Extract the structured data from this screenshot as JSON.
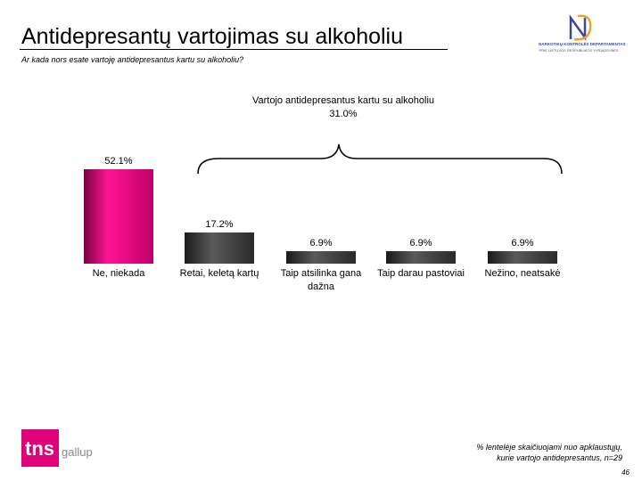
{
  "slide": {
    "title": "Antidepresantų vartojimas su alkoholiu",
    "subtitle": "Ar kada nors esate vartoję antidepresantus kartu su alkoholiu?",
    "group_label": "Vartojo antidepresantus kartu su alkoholiu",
    "group_value": "31.0%",
    "footnote_line1": "% lentelėje skaičiuojami nuo apklaustųjų,",
    "footnote_line2": "kurie vartojo antidepresantus, n=29",
    "page_number": "46",
    "logo_org_line1": "NARKOTIKŲ KONTROLĖS DEPARTAMENTAS",
    "logo_org_line2": "PRIE LIETUVOS RESPUBLIKOS VYRIAUSYBĖS",
    "tns_brand": "tns",
    "tns_sub": "gallup"
  },
  "chart_data": {
    "type": "bar",
    "title": "",
    "xlabel": "",
    "ylabel": "",
    "ylim": [
      0,
      52.1
    ],
    "grid": false,
    "categories": [
      "Ne, niekada",
      "Retai, keletą kartų",
      "Taip atsilinka gana dažna",
      "Taip darau pastoviai",
      "Nežino, neatsakė"
    ],
    "value_labels": [
      "52.1%",
      "17.2%",
      "6.9%",
      "6.9%",
      "6.9%"
    ],
    "values": [
      52.1,
      17.2,
      6.9,
      6.9,
      6.9
    ],
    "bar_colors": [
      "#e0007a",
      "#3a3a3a",
      "#3a3a3a",
      "#3a3a3a",
      "#3a3a3a"
    ]
  }
}
